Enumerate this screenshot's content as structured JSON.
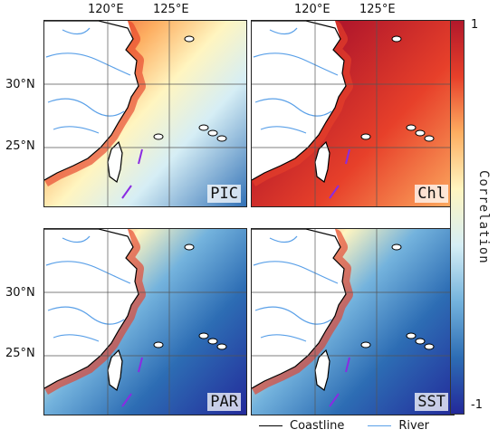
{
  "longitude_labels": [
    "120°E",
    "125°E"
  ],
  "latitude_labels": [
    "30°N",
    "25°N"
  ],
  "panels": [
    {
      "label": "PIC",
      "pattern": "coastal-high"
    },
    {
      "label": "Chl",
      "pattern": "mostly-positive"
    },
    {
      "label": "PAR",
      "pattern": "offshore-negative"
    },
    {
      "label": "SST",
      "pattern": "offshore-negative"
    }
  ],
  "colorbar": {
    "title": "Correlation",
    "max_label": "1",
    "min_label": "-1",
    "colors": [
      "#b2182b",
      "#e7402a",
      "#fdae61",
      "#fff5c0",
      "#d6eef5",
      "#74b3dd",
      "#2d6db4",
      "#23299a"
    ]
  },
  "legend": {
    "coastline_label": "Coastline",
    "river_label": "River",
    "coastline_color": "#000000",
    "river_color": "#5aa0e8"
  }
}
